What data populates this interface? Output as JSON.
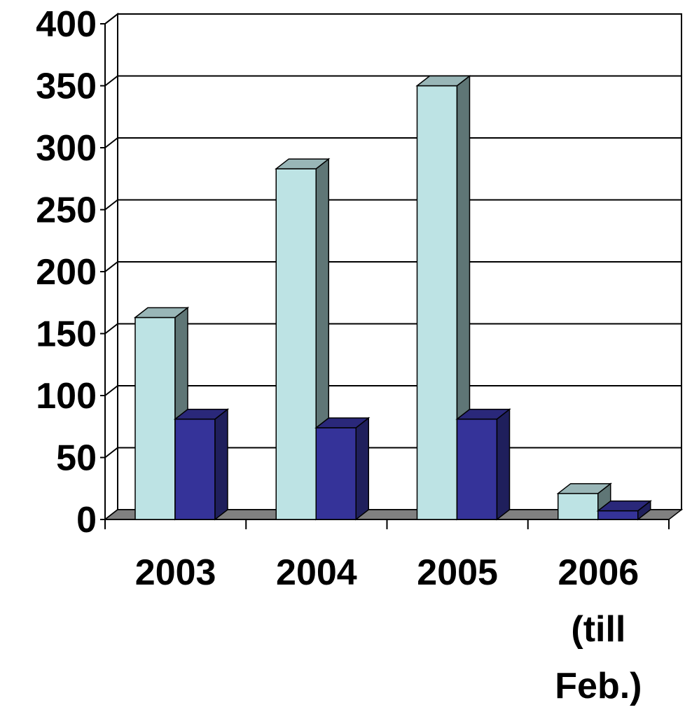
{
  "chart_data": {
    "type": "bar",
    "title": "",
    "xlabel": "",
    "ylabel": "",
    "categories": [
      "2003",
      "2004",
      "2005",
      "2006 (till Feb.)"
    ],
    "category_lines": [
      [
        "2003"
      ],
      [
        "2004"
      ],
      [
        "2005"
      ],
      [
        "2006",
        "(till",
        "Feb.)"
      ]
    ],
    "series": [
      {
        "values": [
          163,
          283,
          350,
          21
        ],
        "color": "#bde3e4"
      },
      {
        "values": [
          81,
          74,
          81,
          7
        ],
        "color": "#353399"
      }
    ],
    "ylim": [
      0,
      400
    ],
    "yticks": [
      0,
      50,
      100,
      150,
      200,
      250,
      300,
      350,
      400
    ],
    "grid": true,
    "legend": "none",
    "style": "3d-clustered-column",
    "colors": {
      "wall": "#ffffff",
      "floor": "#808080",
      "gridline": "#000000",
      "series1_side": "#5f7676",
      "series1_top": "#99b6b7",
      "series2_side": "#1f1f5c",
      "series2_top": "#2a287a"
    }
  }
}
